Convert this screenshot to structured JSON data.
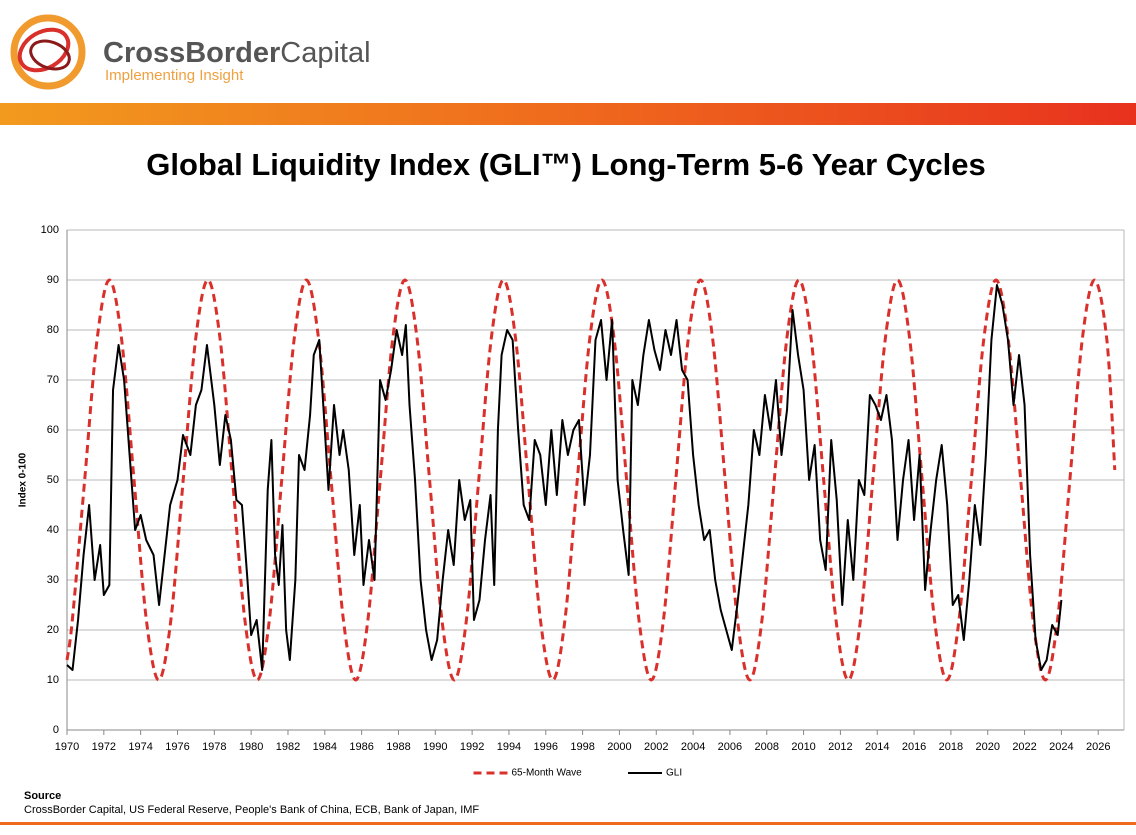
{
  "header": {
    "brand_bold": "CrossBorder",
    "brand_regular": "Capital",
    "tagline": "Implementing Insight"
  },
  "chart_data": {
    "type": "line",
    "title": "Global Liquidity Index (GLI™) Long-Term 5-6 Year Cycles",
    "y_label": "Index 0-100",
    "xlim": [
      1970,
      2027.4
    ],
    "xticks": [
      1970,
      1972,
      1974,
      1976,
      1978,
      1980,
      1982,
      1984,
      1986,
      1988,
      1990,
      1992,
      1994,
      1996,
      1998,
      2000,
      2002,
      2004,
      2006,
      2008,
      2010,
      2012,
      2014,
      2016,
      2018,
      2020,
      2022,
      2024,
      2026
    ],
    "ylim": [
      0,
      100
    ],
    "yticks": [
      0,
      10,
      20,
      30,
      40,
      50,
      60,
      70,
      80,
      90,
      100
    ],
    "grid": true,
    "legend": "bottom",
    "series": [
      {
        "name": "65-Month Wave",
        "color": "#d9302c",
        "dashed": true,
        "smooth": true,
        "x": [
          1970,
          1970.29,
          1970.96,
          1971.63,
          1972.3,
          1972.97,
          1973.64,
          1974.31,
          1974.98,
          1975.64,
          1976.31,
          1976.98,
          1977.65,
          1978.32,
          1978.99,
          1979.66,
          1980.33,
          1980.99,
          1981.66,
          1982.33,
          1983.0,
          1983.67,
          1984.34,
          1985.01,
          1985.68,
          1986.34,
          1987.01,
          1987.68,
          1988.35,
          1989.02,
          1989.69,
          1990.36,
          1991.03,
          1991.69,
          1992.36,
          1993.03,
          1993.7,
          1994.37,
          1995.04,
          1995.71,
          1996.38,
          1997.04,
          1997.71,
          1998.38,
          1999.05,
          1999.72,
          2000.39,
          2001.06,
          2001.73,
          2002.39,
          2003.06,
          2003.73,
          2004.4,
          2005.07,
          2005.74,
          2006.41,
          2007.08,
          2007.74,
          2008.41,
          2009.08,
          2009.75,
          2010.42,
          2011.09,
          2011.76,
          2012.43,
          2013.09,
          2013.76,
          2014.43,
          2015.1,
          2015.77,
          2016.44,
          2017.11,
          2017.78,
          2018.44,
          2019.11,
          2019.78,
          2020.45,
          2021.12,
          2021.79,
          2022.46,
          2023.13,
          2023.79,
          2024.46,
          2025.13,
          2025.8,
          2026.47,
          2026.9
        ],
        "values": [
          14,
          22,
          50,
          78,
          90,
          78,
          50,
          22,
          10,
          22,
          50,
          78,
          90,
          78,
          50,
          22,
          10,
          22,
          50,
          78,
          90,
          78,
          50,
          22,
          10,
          22,
          50,
          78,
          90,
          78,
          50,
          22,
          10,
          22,
          50,
          78,
          90,
          78,
          50,
          22,
          10,
          22,
          50,
          78,
          90,
          78,
          50,
          22,
          10,
          22,
          50,
          78,
          90,
          78,
          50,
          22,
          10,
          22,
          50,
          78,
          90,
          78,
          50,
          22,
          10,
          22,
          50,
          78,
          90,
          78,
          50,
          22,
          10,
          22,
          50,
          78,
          90,
          78,
          50,
          22,
          10,
          22,
          50,
          78,
          90,
          78,
          52
        ]
      },
      {
        "name": "GLI",
        "color": "#000000",
        "dashed": false,
        "smooth": false,
        "x": [
          1970,
          1970.3,
          1970.6,
          1970.9,
          1971.2,
          1971.5,
          1971.8,
          1972.0,
          1972.3,
          1972.5,
          1972.8,
          1973.1,
          1973.4,
          1973.7,
          1974.0,
          1974.3,
          1974.7,
          1975.0,
          1975.3,
          1975.6,
          1976.0,
          1976.3,
          1976.7,
          1977.0,
          1977.3,
          1977.6,
          1978.0,
          1978.3,
          1978.6,
          1978.9,
          1979.2,
          1979.5,
          1979.8,
          1980.0,
          1980.3,
          1980.6,
          1980.9,
          1981.1,
          1981.3,
          1981.5,
          1981.7,
          1981.9,
          1982.1,
          1982.4,
          1982.6,
          1982.9,
          1983.2,
          1983.4,
          1983.7,
          1984.0,
          1984.2,
          1984.5,
          1984.8,
          1985.0,
          1985.3,
          1985.6,
          1985.9,
          1986.1,
          1986.4,
          1986.7,
          1987.0,
          1987.3,
          1987.6,
          1987.9,
          1988.2,
          1988.4,
          1988.6,
          1988.9,
          1989.2,
          1989.5,
          1989.8,
          1990.1,
          1990.4,
          1990.7,
          1991.0,
          1991.3,
          1991.6,
          1991.9,
          1992.1,
          1992.4,
          1992.7,
          1993.0,
          1993.2,
          1993.4,
          1993.6,
          1993.9,
          1994.2,
          1994.5,
          1994.8,
          1995.1,
          1995.4,
          1995.7,
          1996.0,
          1996.3,
          1996.6,
          1996.9,
          1997.2,
          1997.5,
          1997.8,
          1998.1,
          1998.4,
          1998.7,
          1999.0,
          1999.3,
          1999.6,
          1999.9,
          2000.2,
          2000.5,
          2000.7,
          2001.0,
          2001.3,
          2001.6,
          2001.9,
          2002.2,
          2002.5,
          2002.8,
          2003.1,
          2003.4,
          2003.7,
          2004.0,
          2004.3,
          2004.6,
          2004.9,
          2005.2,
          2005.5,
          2005.8,
          2006.1,
          2006.4,
          2006.7,
          2007.0,
          2007.3,
          2007.6,
          2007.9,
          2008.2,
          2008.5,
          2008.8,
          2009.1,
          2009.4,
          2009.7,
          2010.0,
          2010.3,
          2010.6,
          2010.9,
          2011.2,
          2011.5,
          2011.8,
          2012.1,
          2012.4,
          2012.7,
          2013.0,
          2013.3,
          2013.6,
          2013.9,
          2014.2,
          2014.5,
          2014.8,
          2015.1,
          2015.4,
          2015.7,
          2016.0,
          2016.3,
          2016.6,
          2016.9,
          2017.2,
          2017.5,
          2017.8,
          2018.1,
          2018.4,
          2018.7,
          2019.0,
          2019.3,
          2019.6,
          2019.9,
          2020.2,
          2020.5,
          2020.8,
          2021.1,
          2021.4,
          2021.7,
          2022.0,
          2022.3,
          2022.6,
          2022.9,
          2023.2,
          2023.5,
          2023.8,
          2024.0
        ],
        "values": [
          13,
          12,
          22,
          35,
          45,
          30,
          37,
          27,
          29,
          68,
          77,
          70,
          55,
          40,
          43,
          38,
          35,
          25,
          35,
          45,
          50,
          59,
          55,
          65,
          68,
          77,
          65,
          53,
          63,
          58,
          46,
          45,
          30,
          19,
          22,
          12,
          48,
          58,
          35,
          29,
          41,
          20,
          14,
          30,
          55,
          52,
          63,
          75,
          78,
          60,
          48,
          65,
          55,
          60,
          52,
          35,
          45,
          29,
          38,
          30,
          70,
          66,
          72,
          80,
          75,
          81,
          65,
          50,
          30,
          20,
          14,
          18,
          30,
          40,
          33,
          50,
          42,
          46,
          22,
          26,
          38,
          47,
          29,
          60,
          75,
          80,
          78,
          60,
          45,
          42,
          58,
          55,
          45,
          60,
          47,
          62,
          55,
          60,
          62,
          45,
          55,
          78,
          82,
          70,
          82,
          50,
          40,
          31,
          70,
          65,
          75,
          82,
          76,
          72,
          80,
          75,
          82,
          72,
          70,
          55,
          45,
          38,
          40,
          30,
          24,
          20,
          16,
          25,
          35,
          45,
          60,
          55,
          67,
          60,
          70,
          55,
          64,
          84,
          75,
          68,
          50,
          57,
          38,
          32,
          58,
          46,
          25,
          42,
          30,
          50,
          47,
          67,
          65,
          62,
          67,
          58,
          38,
          50,
          58,
          42,
          55,
          28,
          40,
          50,
          57,
          45,
          25,
          27,
          18,
          30,
          45,
          37,
          55,
          78,
          89,
          85,
          78,
          65,
          75,
          65,
          35,
          18,
          12,
          14,
          21,
          19,
          26
        ]
      }
    ]
  },
  "source": {
    "label": "Source",
    "text": "CrossBorder Capital, US Federal Reserve, People's Bank of China, ECB, Bank of Japan, IMF"
  }
}
